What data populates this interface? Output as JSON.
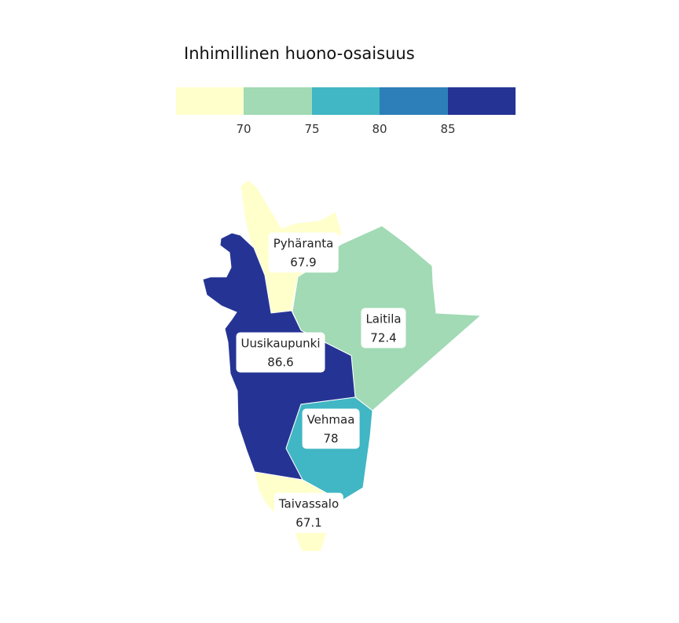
{
  "legend": {
    "title": "Inhimillinen huono-osaisuus",
    "colors": [
      "#ffffcc",
      "#a1dab4",
      "#41b6c4",
      "#2c7fb8",
      "#253494"
    ],
    "ticks": [
      "70",
      "75",
      "80",
      "85"
    ]
  },
  "regions": [
    {
      "name": "Pyhäranta",
      "value": "67.9",
      "color": "#ffffcc"
    },
    {
      "name": "Laitila",
      "value": "72.4",
      "color": "#a1dab4"
    },
    {
      "name": "Uusikaupunki",
      "value": "86.6",
      "color": "#253494"
    },
    {
      "name": "Vehmaa",
      "value": "78",
      "color": "#41b6c4"
    },
    {
      "name": "Taivassalo",
      "value": "67.1",
      "color": "#ffffcc"
    }
  ]
}
